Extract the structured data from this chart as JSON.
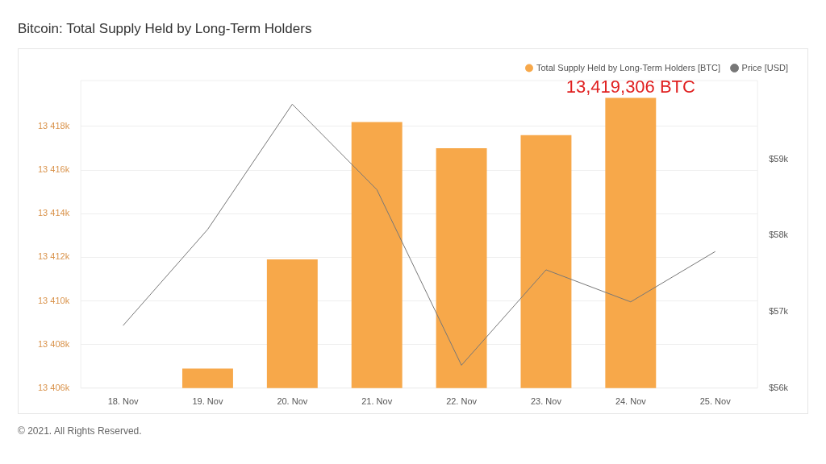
{
  "chart_data": {
    "type": "bar",
    "title": "Bitcoin: Total Supply Held by Long-Term Holders",
    "categories": [
      "18. Nov",
      "19. Nov",
      "20. Nov",
      "21. Nov",
      "22. Nov",
      "23. Nov",
      "24. Nov",
      "25. Nov"
    ],
    "series": [
      {
        "name": "Total Supply Held by Long-Term Holders [BTC]",
        "color": "#f7a84a",
        "values": [
          null,
          13406900,
          13411900,
          13418200,
          13417000,
          13417600,
          13419306,
          null
        ]
      },
      {
        "name": "Price [USD]",
        "type": "line",
        "axis": "y2",
        "color": "#777777",
        "values": [
          56820,
          58080,
          59720,
          58600,
          56300,
          57550,
          57130,
          57790
        ]
      }
    ],
    "ylim": [
      13406000,
      13420100
    ],
    "yticks": [
      {
        "value": 13406000,
        "label": "13 406k"
      },
      {
        "value": 13408000,
        "label": "13 408k"
      },
      {
        "value": 13410000,
        "label": "13 410k"
      },
      {
        "value": 13412000,
        "label": "13 412k"
      },
      {
        "value": 13414000,
        "label": "13 414k"
      },
      {
        "value": 13416000,
        "label": "13 416k"
      },
      {
        "value": 13418000,
        "label": "13 418k"
      }
    ],
    "y2lim": [
      56000,
      60030
    ],
    "y2ticks": [
      {
        "value": 56000,
        "label": "$56k"
      },
      {
        "value": 57000,
        "label": "$57k"
      },
      {
        "value": 58000,
        "label": "$58k"
      },
      {
        "value": 59000,
        "label": "$59k"
      }
    ],
    "grid": "y",
    "legend": "top right",
    "annotations": [
      {
        "text": "13,419,306 BTC",
        "x": "24. Nov",
        "y": 13419306
      },
      "© 2021. All Rights Reserved."
    ]
  }
}
